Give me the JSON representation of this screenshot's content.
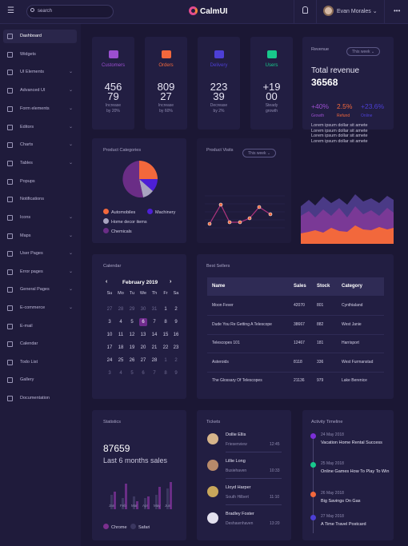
{
  "header": {
    "search_placeholder": "search",
    "brand": "CalmUI",
    "user_name": "Evan Morales",
    "more": "•••"
  },
  "sidebar": {
    "items": [
      {
        "label": "Dashboard",
        "chevron": false
      },
      {
        "label": "Widgets",
        "chevron": false
      },
      {
        "label": "UI Elements",
        "chevron": true
      },
      {
        "label": "Advanced UI",
        "chevron": true
      },
      {
        "label": "Form elements",
        "chevron": true
      },
      {
        "label": "Editors",
        "chevron": true
      },
      {
        "label": "Charts",
        "chevron": true
      },
      {
        "label": "Tables",
        "chevron": true
      },
      {
        "label": "Popups",
        "chevron": false
      },
      {
        "label": "Notifications",
        "chevron": false
      },
      {
        "label": "Icons",
        "chevron": true
      },
      {
        "label": "Maps",
        "chevron": true
      },
      {
        "label": "User Pages",
        "chevron": true
      },
      {
        "label": "Error pages",
        "chevron": true
      },
      {
        "label": "General Pages",
        "chevron": true
      },
      {
        "label": "E-commerce",
        "chevron": true
      },
      {
        "label": "E-mail",
        "chevron": false
      },
      {
        "label": "Calendar",
        "chevron": false
      },
      {
        "label": "Todo List",
        "chevron": false
      },
      {
        "label": "Gallery",
        "chevron": false
      },
      {
        "label": "Documentation",
        "chevron": false
      }
    ]
  },
  "stats": [
    {
      "label": "Customers",
      "value": "456\n79",
      "sub": "Increase\nby 20%",
      "color": "#9b4fd0"
    },
    {
      "label": "Orders",
      "value": "809\n27",
      "sub": "Increase\nby 60%",
      "color": "#f2683c"
    },
    {
      "label": "Delivery",
      "value": "223\n39",
      "sub": "Decrease\nby 2%",
      "color": "#4d3fd6"
    },
    {
      "label": "Users",
      "value": "+19\n00",
      "sub": "Steady\ngrowth",
      "color": "#18c98c"
    }
  ],
  "revenue": {
    "title": "Revenue",
    "dropdown": "This week",
    "total_label": "Total revenue",
    "total": "36568",
    "metrics": [
      {
        "value": "+40%",
        "label": "Growth",
        "color": "#9b4fd0"
      },
      {
        "value": "2.5%",
        "label": "Refund",
        "color": "#f2683c"
      },
      {
        "value": "+23.6%",
        "label": "Online",
        "color": "#4d3fd6"
      }
    ],
    "lorem": [
      "Lorem ipsum dollar sit amete",
      "Lorem ipsum dollar sit amete",
      "Lorem ipsum dollar sit amete",
      "Lorem ipsum dollar sit amete"
    ]
  },
  "product_categories": {
    "title": "Product Categories",
    "legend": [
      {
        "label": "Automobiles",
        "color": "#f2683c"
      },
      {
        "label": "Machinery",
        "color": "#4d1fd6"
      },
      {
        "label": "Home decor items",
        "color": "#a8a4c0"
      },
      {
        "label": "Chemicals",
        "color": "#6a2d86"
      }
    ]
  },
  "product_visits": {
    "title": "Product Visits",
    "dropdown": "This week"
  },
  "calendar": {
    "title": "Calendar",
    "month": "February 2019",
    "prev": "‹",
    "next": "›",
    "dow": [
      "Su",
      "Mo",
      "Tu",
      "We",
      "Th",
      "Fr",
      "Sa"
    ],
    "weeks": [
      [
        "27",
        "28",
        "29",
        "30",
        "31",
        "1",
        "2"
      ],
      [
        "3",
        "4",
        "5",
        "6",
        "7",
        "8",
        "9"
      ],
      [
        "10",
        "11",
        "12",
        "13",
        "14",
        "15",
        "16"
      ],
      [
        "17",
        "18",
        "19",
        "20",
        "21",
        "22",
        "23"
      ],
      [
        "24",
        "25",
        "26",
        "27",
        "28",
        "1",
        "2"
      ],
      [
        "3",
        "4",
        "5",
        "6",
        "7",
        "8",
        "9"
      ]
    ]
  },
  "best_sellers": {
    "title": "Best Sellers",
    "columns": [
      "Name",
      "Sales",
      "Stock",
      "Category"
    ],
    "rows": [
      [
        "Moon Fever",
        "42070",
        "801",
        "Cynthialand"
      ],
      [
        "Dude You Re Getting A Telescope",
        "38667",
        "882",
        "West Janie"
      ],
      [
        "Telescopes 101",
        "12467",
        "181",
        "Harrisport"
      ],
      [
        "Asteroids",
        "8118",
        "336",
        "West Furmanstad"
      ],
      [
        "The Glossary Of Telescopes",
        "21136",
        "979",
        "Lake Berenice"
      ]
    ]
  },
  "statistics": {
    "title": "Statistics",
    "value": "87659",
    "caption": "Last 6 months sales",
    "months": [
      "Jan",
      "Feb",
      "Mar",
      "Apr",
      "May",
      "Jun"
    ],
    "legend": [
      {
        "label": "Chrome",
        "color": "#7b2f8e"
      },
      {
        "label": "Safari",
        "color": "#3b3760"
      }
    ]
  },
  "tickets": {
    "title": "Tickets",
    "items": [
      {
        "name": "Dollie Ellis",
        "location": "Friesenview",
        "time": "12:45"
      },
      {
        "name": "Lillie Long",
        "location": "Busiehaven",
        "time": "10:33"
      },
      {
        "name": "Lloyd Harper",
        "location": "South Hilbert",
        "time": "11:10"
      },
      {
        "name": "Bradley Foster",
        "location": "Deshawnhaven",
        "time": "13:20"
      }
    ]
  },
  "timeline": {
    "title": "Activity Timeline",
    "items": [
      {
        "date": "24 May 2018",
        "text": "Vacation Home Rental Success",
        "color": "#7b2fd6"
      },
      {
        "date": "25 May 2018",
        "text": "Online Games How To Play To Win",
        "color": "#18c98c"
      },
      {
        "date": "26 May 2018",
        "text": "Big Savings On Gas",
        "color": "#f2683c"
      },
      {
        "date": "27 May 2018",
        "text": "A Time Travel Postcard",
        "color": "#4d3fd6"
      }
    ]
  }
}
